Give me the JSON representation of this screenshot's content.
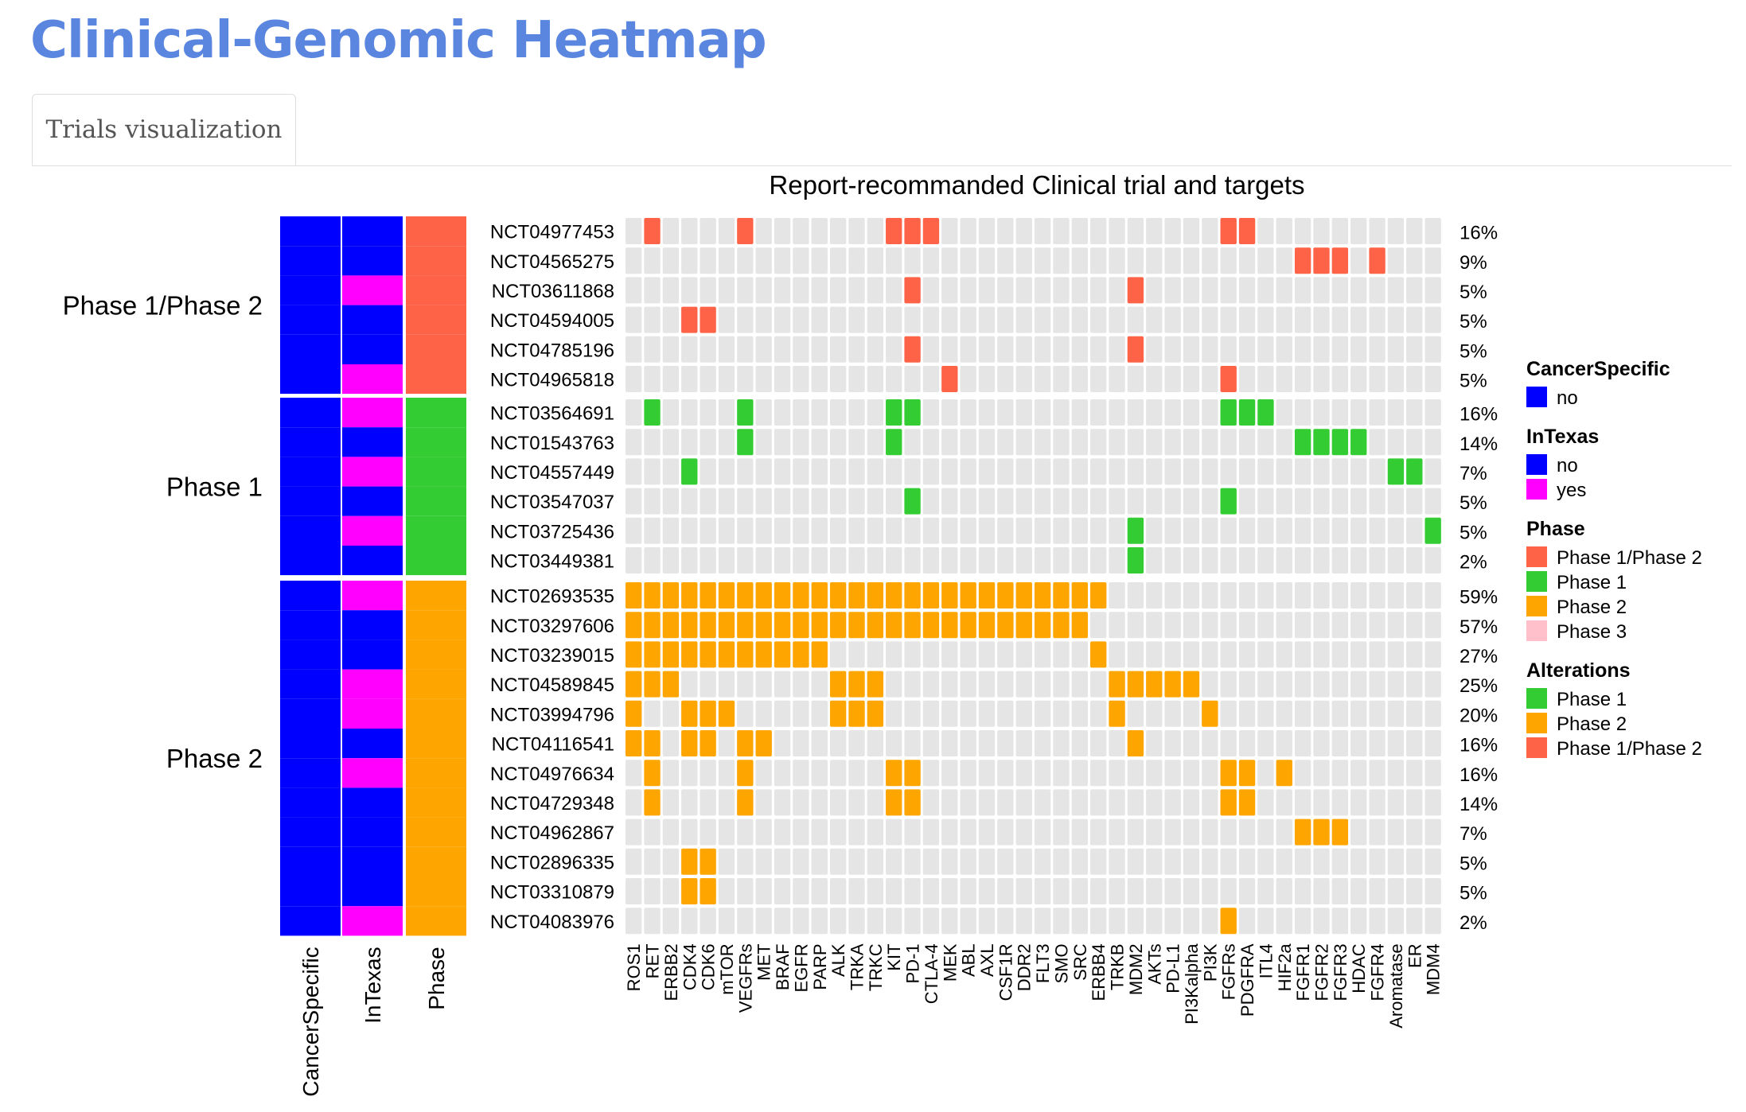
{
  "page": {
    "title": "Clinical-Genomic Heatmap"
  },
  "tabs": [
    {
      "label": "Trials visualization",
      "active": true
    }
  ],
  "colors": {
    "cell_empty": "#e5e5e5",
    "alt_phase1": "#33cc33",
    "alt_phase2": "#ffa500",
    "alt_phase12": "#ff6347",
    "cancer_no": "#0000ff",
    "intexas_no": "#0000ff",
    "intexas_yes": "#ff00ff",
    "phase12": "#ff6347",
    "phase1": "#33cc33",
    "phase2": "#ffa500",
    "phase3": "#ffc0cb"
  },
  "chart_data": {
    "type": "heatmap",
    "title": "Report-recommanded Clinical trial and targets",
    "targets": [
      "ROS1",
      "RET",
      "ERBB2",
      "CDK4",
      "CDK6",
      "mTOR",
      "VEGFRs",
      "MET",
      "BRAF",
      "EGFR",
      "PARP",
      "ALK",
      "TRKA",
      "TRKC",
      "KIT",
      "PD-1",
      "CTLA-4",
      "MEK",
      "ABL",
      "AXL",
      "CSF1R",
      "DDR2",
      "FLT3",
      "SMO",
      "SRC",
      "ERBB4",
      "TRKB",
      "MDM2",
      "AKTs",
      "PD-L1",
      "PI3Kalpha",
      "PI3K",
      "FGFRs",
      "PDGFRA",
      "ITL4",
      "HIF2a",
      "FGFR1",
      "FGFR2",
      "FGFR3",
      "HDAC",
      "FGFR4",
      "Aromatase",
      "ER",
      "MDM4"
    ],
    "annotation_labels": [
      "CancerSpecific",
      "InTexas",
      "Phase"
    ],
    "groups": [
      {
        "label": "Phase 1/Phase 2",
        "alteration": "Phase 1/Phase 2",
        "trials": [
          {
            "id": "NCT04977453",
            "pct": "16%",
            "cancer_specific": "no",
            "in_texas": "no",
            "targets": [
              "RET",
              "VEGFRs",
              "KIT",
              "PD-1",
              "CTLA-4",
              "FGFRs",
              "PDGFRA"
            ]
          },
          {
            "id": "NCT04565275",
            "pct": "9%",
            "cancer_specific": "no",
            "in_texas": "no",
            "targets": [
              "FGFR1",
              "FGFR2",
              "FGFR3",
              "FGFR4"
            ]
          },
          {
            "id": "NCT03611868",
            "pct": "5%",
            "cancer_specific": "no",
            "in_texas": "yes",
            "targets": [
              "PD-1",
              "MDM2"
            ]
          },
          {
            "id": "NCT04594005",
            "pct": "5%",
            "cancer_specific": "no",
            "in_texas": "no",
            "targets": [
              "CDK4",
              "CDK6"
            ]
          },
          {
            "id": "NCT04785196",
            "pct": "5%",
            "cancer_specific": "no",
            "in_texas": "no",
            "targets": [
              "PD-1",
              "MDM2"
            ]
          },
          {
            "id": "NCT04965818",
            "pct": "5%",
            "cancer_specific": "no",
            "in_texas": "yes",
            "targets": [
              "MEK",
              "FGFRs"
            ]
          }
        ]
      },
      {
        "label": "Phase 1",
        "alteration": "Phase 1",
        "trials": [
          {
            "id": "NCT03564691",
            "pct": "16%",
            "cancer_specific": "no",
            "in_texas": "yes",
            "targets": [
              "RET",
              "VEGFRs",
              "KIT",
              "PD-1",
              "FGFRs",
              "PDGFRA",
              "ITL4"
            ]
          },
          {
            "id": "NCT01543763",
            "pct": "14%",
            "cancer_specific": "no",
            "in_texas": "no",
            "targets": [
              "VEGFRs",
              "KIT",
              "FGFR1",
              "FGFR2",
              "FGFR3",
              "HDAC"
            ]
          },
          {
            "id": "NCT04557449",
            "pct": "7%",
            "cancer_specific": "no",
            "in_texas": "yes",
            "targets": [
              "CDK4",
              "Aromatase",
              "ER"
            ]
          },
          {
            "id": "NCT03547037",
            "pct": "5%",
            "cancer_specific": "no",
            "in_texas": "no",
            "targets": [
              "PD-1",
              "FGFRs"
            ]
          },
          {
            "id": "NCT03725436",
            "pct": "5%",
            "cancer_specific": "no",
            "in_texas": "yes",
            "targets": [
              "MDM2",
              "MDM4"
            ]
          },
          {
            "id": "NCT03449381",
            "pct": "2%",
            "cancer_specific": "no",
            "in_texas": "no",
            "targets": [
              "MDM2"
            ]
          }
        ]
      },
      {
        "label": "Phase 2",
        "alteration": "Phase 2",
        "trials": [
          {
            "id": "NCT02693535",
            "pct": "59%",
            "cancer_specific": "no",
            "in_texas": "yes",
            "targets": [
              "ROS1",
              "RET",
              "ERBB2",
              "CDK4",
              "CDK6",
              "mTOR",
              "VEGFRs",
              "MET",
              "BRAF",
              "EGFR",
              "PARP",
              "ALK",
              "TRKA",
              "TRKC",
              "KIT",
              "PD-1",
              "CTLA-4",
              "MEK",
              "ABL",
              "AXL",
              "CSF1R",
              "DDR2",
              "FLT3",
              "SMO",
              "SRC",
              "ERBB4"
            ]
          },
          {
            "id": "NCT03297606",
            "pct": "57%",
            "cancer_specific": "no",
            "in_texas": "no",
            "targets": [
              "ROS1",
              "RET",
              "ERBB2",
              "CDK4",
              "CDK6",
              "mTOR",
              "VEGFRs",
              "MET",
              "BRAF",
              "EGFR",
              "PARP",
              "ALK",
              "TRKA",
              "TRKC",
              "KIT",
              "PD-1",
              "CTLA-4",
              "MEK",
              "ABL",
              "AXL",
              "CSF1R",
              "DDR2",
              "FLT3",
              "SMO",
              "SRC"
            ]
          },
          {
            "id": "NCT03239015",
            "pct": "27%",
            "cancer_specific": "no",
            "in_texas": "no",
            "targets": [
              "ROS1",
              "RET",
              "ERBB2",
              "CDK4",
              "CDK6",
              "mTOR",
              "VEGFRs",
              "MET",
              "BRAF",
              "EGFR",
              "PARP",
              "ERBB4"
            ]
          },
          {
            "id": "NCT04589845",
            "pct": "25%",
            "cancer_specific": "no",
            "in_texas": "yes",
            "targets": [
              "ROS1",
              "RET",
              "ERBB2",
              "ALK",
              "TRKA",
              "TRKC",
              "TRKB",
              "MDM2",
              "AKTs",
              "PD-L1",
              "PI3Kalpha"
            ]
          },
          {
            "id": "NCT03994796",
            "pct": "20%",
            "cancer_specific": "no",
            "in_texas": "yes",
            "targets": [
              "ROS1",
              "CDK4",
              "CDK6",
              "mTOR",
              "ALK",
              "TRKA",
              "TRKC",
              "TRKB",
              "PI3K"
            ]
          },
          {
            "id": "NCT04116541",
            "pct": "16%",
            "cancer_specific": "no",
            "in_texas": "no",
            "targets": [
              "ROS1",
              "RET",
              "CDK4",
              "CDK6",
              "VEGFRs",
              "MET",
              "MDM2"
            ]
          },
          {
            "id": "NCT04976634",
            "pct": "16%",
            "cancer_specific": "no",
            "in_texas": "yes",
            "targets": [
              "RET",
              "VEGFRs",
              "KIT",
              "PD-1",
              "FGFRs",
              "PDGFRA",
              "HIF2a"
            ]
          },
          {
            "id": "NCT04729348",
            "pct": "14%",
            "cancer_specific": "no",
            "in_texas": "no",
            "targets": [
              "RET",
              "VEGFRs",
              "KIT",
              "PD-1",
              "FGFRs",
              "PDGFRA"
            ]
          },
          {
            "id": "NCT04962867",
            "pct": "7%",
            "cancer_specific": "no",
            "in_texas": "no",
            "targets": [
              "FGFR1",
              "FGFR2",
              "FGFR3"
            ]
          },
          {
            "id": "NCT02896335",
            "pct": "5%",
            "cancer_specific": "no",
            "in_texas": "no",
            "targets": [
              "CDK4",
              "CDK6"
            ]
          },
          {
            "id": "NCT03310879",
            "pct": "5%",
            "cancer_specific": "no",
            "in_texas": "no",
            "targets": [
              "CDK4",
              "CDK6"
            ]
          },
          {
            "id": "NCT04083976",
            "pct": "2%",
            "cancer_specific": "no",
            "in_texas": "yes",
            "targets": [
              "FGFRs"
            ]
          }
        ]
      }
    ],
    "legends": [
      {
        "title": "CancerSpecific",
        "items": [
          {
            "label": "no",
            "color": "#0000ff"
          }
        ]
      },
      {
        "title": "InTexas",
        "items": [
          {
            "label": "no",
            "color": "#0000ff"
          },
          {
            "label": "yes",
            "color": "#ff00ff"
          }
        ]
      },
      {
        "title": "Phase",
        "items": [
          {
            "label": "Phase 1/Phase 2",
            "color": "#ff6347"
          },
          {
            "label": "Phase 1",
            "color": "#33cc33"
          },
          {
            "label": "Phase 2",
            "color": "#ffa500"
          },
          {
            "label": "Phase 3",
            "color": "#ffc0cb"
          }
        ]
      },
      {
        "title": "Alterations",
        "items": [
          {
            "label": "Phase 1",
            "color": "#33cc33"
          },
          {
            "label": "Phase 2",
            "color": "#ffa500"
          },
          {
            "label": "Phase 1/Phase 2",
            "color": "#ff6347"
          }
        ]
      }
    ]
  }
}
